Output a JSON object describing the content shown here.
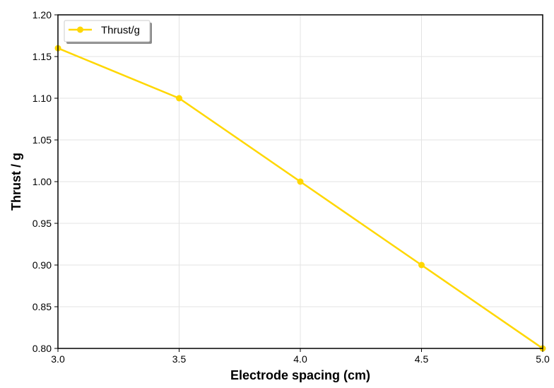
{
  "chart_data": {
    "type": "line",
    "title": "",
    "xlabel": "Electrode spacing (cm)",
    "ylabel": "Thrust / g",
    "xlim": [
      3.0,
      5.0
    ],
    "ylim": [
      0.8,
      1.2
    ],
    "x_ticks": [
      "3.0",
      "3.5",
      "4.0",
      "4.5",
      "5.0"
    ],
    "y_ticks": [
      "0.80",
      "0.85",
      "0.90",
      "0.95",
      "1.00",
      "1.05",
      "1.10",
      "1.15",
      "1.20"
    ],
    "grid": true,
    "legend_position": "top-left",
    "series": [
      {
        "name": "Thrust/g",
        "color": "#FFD700",
        "marker": "circle",
        "x": [
          3.0,
          3.5,
          4.0,
          4.5,
          5.0
        ],
        "y": [
          1.16,
          1.1,
          1.0,
          0.9,
          0.8
        ]
      }
    ]
  }
}
